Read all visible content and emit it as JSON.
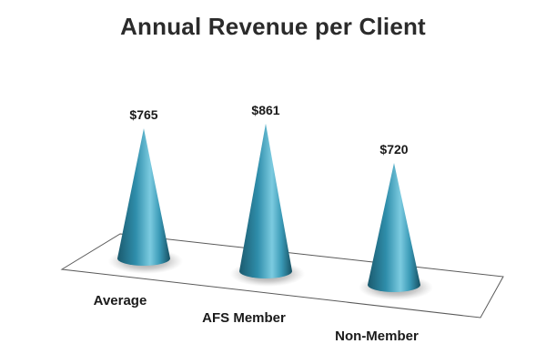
{
  "chart_data": {
    "type": "bar",
    "subtype": "3d-cone",
    "title": "Annual Revenue per Client",
    "categories": [
      "Average",
      "AFS Member",
      "Non-Member"
    ],
    "values": [
      765,
      861,
      720
    ],
    "data_labels": [
      "$765",
      "$861",
      "$720"
    ],
    "xlabel": "",
    "ylabel": "",
    "grid": false,
    "legend": "none",
    "colors": {
      "cone_dark": "#1d5f73",
      "cone_mid": "#2e8aa6",
      "cone_light": "#7cc6da",
      "floor_stroke": "#666666"
    }
  }
}
